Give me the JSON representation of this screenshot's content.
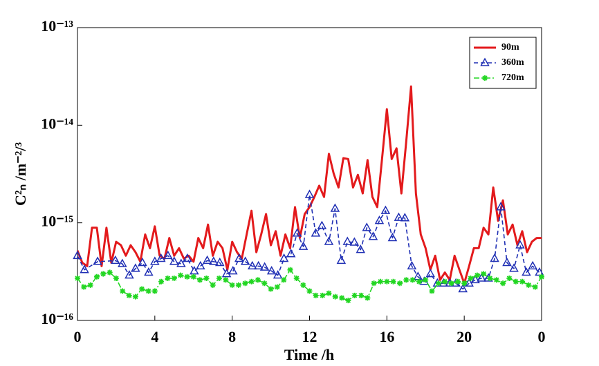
{
  "chart_data": {
    "type": "line",
    "x_label": "Time /h",
    "y_label": "C²ₙ /m⁻²/³",
    "xlim": [
      0,
      24
    ],
    "xticks": [
      0,
      4,
      8,
      12,
      16,
      20,
      {
        "value": 24,
        "label": "0"
      }
    ],
    "ylim": [
      1e-16,
      1e-13
    ],
    "yticks": [
      {
        "value": 1e-16,
        "label": "10⁻¹⁶"
      },
      {
        "value": 1e-15,
        "label": "10⁻¹⁵"
      },
      {
        "value": 1e-14,
        "label": "10⁻¹⁴"
      },
      {
        "value": 1e-13,
        "label": "10⁻¹³"
      }
    ],
    "log_y": true,
    "legend": "upper right",
    "series": [
      {
        "name": "90m",
        "color": "#e31a1c",
        "linestyle": "solid",
        "marker": "none",
        "x": [
          0,
          0.25,
          0.5,
          0.75,
          1,
          1.25,
          1.5,
          1.75,
          2,
          2.25,
          2.5,
          2.75,
          3,
          3.25,
          3.5,
          3.75,
          4,
          4.25,
          4.5,
          4.75,
          5,
          5.25,
          5.5,
          5.75,
          6,
          6.25,
          6.5,
          6.75,
          7,
          7.25,
          7.5,
          7.75,
          8,
          8.25,
          8.5,
          8.75,
          9,
          9.25,
          9.5,
          9.75,
          10,
          10.25,
          10.5,
          10.75,
          11,
          11.25,
          11.5,
          11.75,
          12,
          12.25,
          12.5,
          12.75,
          13,
          13.25,
          13.5,
          13.75,
          14,
          14.25,
          14.5,
          14.75,
          15,
          15.25,
          15.5,
          15.75,
          16,
          16.25,
          16.5,
          16.75,
          17,
          17.25,
          17.5,
          17.75,
          18,
          18.25,
          18.5,
          18.75,
          19,
          19.25,
          19.5,
          19.75,
          20,
          20.25,
          20.5,
          20.75,
          21,
          21.25,
          21.5,
          21.75,
          22,
          22.25,
          22.5,
          22.75,
          23,
          23.25,
          23.5,
          23.75,
          24
        ],
        "values": [
          5.2e-16,
          3.9e-16,
          3.6e-16,
          8.9e-16,
          8.9e-16,
          3.6e-16,
          8.9e-16,
          3.9e-16,
          6.4e-16,
          5.9e-16,
          4.6e-16,
          5.9e-16,
          5e-16,
          4e-16,
          7.6e-16,
          5.5e-16,
          9.2e-16,
          4.6e-16,
          4.3e-16,
          7e-16,
          4.6e-16,
          5.5e-16,
          4.3e-16,
          4.6e-16,
          4e-16,
          7e-16,
          5.5e-16,
          9.6e-16,
          4.6e-16,
          6.4e-16,
          5.5e-16,
          3.3e-16,
          6.4e-16,
          5e-16,
          4.3e-16,
          7.6e-16,
          1.33e-15,
          5e-16,
          7.6e-16,
          1.23e-15,
          5.9e-16,
          8.2e-16,
          4.6e-16,
          7.6e-16,
          5.5e-16,
          1.45e-15,
          7e-16,
          1.23e-15,
          1.45e-15,
          1.84e-15,
          2.4e-15,
          1.84e-15,
          5.1e-15,
          3.2e-15,
          2.3e-15,
          4.6e-15,
          4.5e-15,
          2.3e-15,
          3.1e-15,
          2e-15,
          4.4e-15,
          1.84e-15,
          1.45e-15,
          4.5e-15,
          1.46e-14,
          4.5e-15,
          5.8e-15,
          2e-15,
          6.8e-15,
          2.5e-14,
          2e-15,
          7.6e-16,
          5.5e-16,
          3.3e-16,
          4.6e-16,
          2.6e-16,
          3.1e-16,
          2.6e-16,
          4.6e-16,
          3.3e-16,
          2.4e-16,
          3.6e-16,
          5.5e-16,
          5.5e-16,
          8.9e-16,
          7.6e-16,
          2.3e-15,
          1.05e-15,
          1.7e-15,
          7.6e-16,
          9.6e-16,
          5.9e-16,
          8.2e-16,
          5e-16,
          6.4e-16,
          7e-16,
          7e-16
        ]
      },
      {
        "name": "360m",
        "color": "#1f2fb4",
        "linestyle": "dashed",
        "marker": "triangle",
        "x": [
          0,
          0.36,
          1.04,
          1.96,
          2.32,
          2.68,
          3,
          3.36,
          3.68,
          4,
          4.32,
          4.68,
          5,
          5.36,
          5.68,
          6.04,
          6.36,
          6.71,
          7.04,
          7.36,
          7.71,
          8.04,
          8.36,
          8.68,
          9.04,
          9.36,
          9.68,
          10.04,
          10.36,
          10.68,
          11.04,
          11.36,
          11.68,
          12,
          12.32,
          12.64,
          13,
          13.32,
          13.64,
          13.96,
          14.32,
          14.64,
          14.96,
          15.29,
          15.61,
          15.93,
          16.29,
          16.61,
          16.93,
          17.29,
          17.61,
          17.93,
          18.25,
          18.61,
          18.93,
          19.25,
          19.57,
          19.93,
          20.25,
          20.57,
          20.89,
          21.25,
          21.57,
          21.89,
          22.21,
          22.57,
          22.89,
          23.21,
          23.54,
          23.89
        ],
        "values": [
          4.6e-16,
          3.3e-16,
          4e-16,
          4.1e-16,
          3.8e-16,
          2.9e-16,
          3.4e-16,
          3.9e-16,
          3.1e-16,
          4e-16,
          4.3e-16,
          4.6e-16,
          4e-16,
          3.8e-16,
          4.3e-16,
          3.2e-16,
          3.6e-16,
          4.1e-16,
          4e-16,
          3.9e-16,
          3e-16,
          3.2e-16,
          4.3e-16,
          4e-16,
          3.6e-16,
          3.6e-16,
          3.5e-16,
          3.2e-16,
          2.9e-16,
          4.3e-16,
          4.8e-16,
          7.8e-16,
          5.7e-16,
          1.94e-15,
          7.8e-16,
          9.3e-16,
          6.4e-16,
          1.4e-15,
          4.1e-16,
          6.4e-16,
          6.3e-16,
          5.3e-16,
          8.9e-16,
          7.2e-16,
          1.05e-15,
          1.33e-15,
          7e-16,
          1.13e-15,
          1.12e-15,
          3.6e-16,
          2.8e-16,
          2.5e-16,
          3e-16,
          2.4e-16,
          2.4e-16,
          2.4e-16,
          2.4e-16,
          2.1e-16,
          2.4e-16,
          2.6e-16,
          2.7e-16,
          2.7e-16,
          4.3e-16,
          1.45e-15,
          3.9e-16,
          3.4e-16,
          5.9e-16,
          3.1e-16,
          3.6e-16,
          3.1e-16
        ]
      },
      {
        "name": "720m",
        "color": "#22d622",
        "linestyle": "dashdot",
        "marker": "asterisk",
        "x": [
          0,
          0.33,
          0.67,
          1,
          1.33,
          1.67,
          2,
          2.33,
          2.67,
          3,
          3.33,
          3.67,
          4,
          4.33,
          4.67,
          5,
          5.33,
          5.67,
          6,
          6.33,
          6.67,
          7,
          7.33,
          7.67,
          8,
          8.33,
          8.67,
          9,
          9.33,
          9.67,
          10,
          10.33,
          10.67,
          11,
          11.33,
          11.67,
          12,
          12.33,
          12.67,
          13,
          13.33,
          13.67,
          14,
          14.33,
          14.67,
          15,
          15.33,
          15.67,
          16,
          16.33,
          16.67,
          17,
          17.33,
          17.67,
          18,
          18.33,
          18.67,
          19,
          19.33,
          19.67,
          20,
          20.33,
          20.67,
          21,
          21.33,
          21.67,
          22,
          22.33,
          22.67,
          23,
          23.33,
          23.67,
          24
        ],
        "values": [
          2.7e-16,
          2.2e-16,
          2.3e-16,
          2.8e-16,
          3e-16,
          3.1e-16,
          2.7e-16,
          2e-16,
          1.8e-16,
          1.75e-16,
          2.1e-16,
          2e-16,
          2e-16,
          2.5e-16,
          2.7e-16,
          2.7e-16,
          2.9e-16,
          2.8e-16,
          2.8e-16,
          2.6e-16,
          2.7e-16,
          2.3e-16,
          2.7e-16,
          2.6e-16,
          2.3e-16,
          2.3e-16,
          2.4e-16,
          2.5e-16,
          2.6e-16,
          2.4e-16,
          2.1e-16,
          2.2e-16,
          2.6e-16,
          3.3e-16,
          2.7e-16,
          2.3e-16,
          2e-16,
          1.8e-16,
          1.8e-16,
          1.9e-16,
          1.75e-16,
          1.7e-16,
          1.6e-16,
          1.8e-16,
          1.8e-16,
          1.7e-16,
          2.4e-16,
          2.5e-16,
          2.5e-16,
          2.5e-16,
          2.4e-16,
          2.6e-16,
          2.6e-16,
          2.5e-16,
          2.6e-16,
          2e-16,
          2.4e-16,
          2.5e-16,
          2.4e-16,
          2.5e-16,
          2.4e-16,
          2.7e-16,
          2.9e-16,
          3e-16,
          2.7e-16,
          2.6e-16,
          2.4e-16,
          2.7e-16,
          2.5e-16,
          2.5e-16,
          2.3e-16,
          2.2e-16,
          2.8e-16
        ]
      }
    ]
  }
}
